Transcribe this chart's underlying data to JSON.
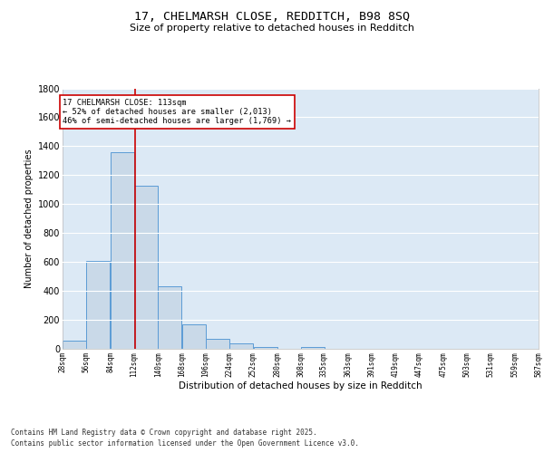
{
  "title": "17, CHELMARSH CLOSE, REDDITCH, B98 8SQ",
  "subtitle": "Size of property relative to detached houses in Redditch",
  "xlabel": "Distribution of detached houses by size in Redditch",
  "ylabel": "Number of detached properties",
  "footer_line1": "Contains HM Land Registry data © Crown copyright and database right 2025.",
  "footer_line2": "Contains public sector information licensed under the Open Government Licence v3.0.",
  "bin_edges": [
    28,
    56,
    84,
    112,
    140,
    168,
    196,
    224,
    252,
    280,
    308,
    335,
    363,
    391,
    419,
    447,
    475,
    503,
    531,
    559,
    587
  ],
  "bar_heights": [
    56,
    605,
    1360,
    1130,
    430,
    170,
    68,
    35,
    15,
    0,
    15,
    0,
    0,
    0,
    0,
    0,
    0,
    0,
    0,
    0
  ],
  "bar_color": "#c9d9e8",
  "bar_edge_color": "#5b9bd5",
  "plot_bg_color": "#dce9f5",
  "fig_bg_color": "#ffffff",
  "grid_color": "#ffffff",
  "vline_x": 113,
  "vline_color": "#cc0000",
  "ylim": [
    0,
    1800
  ],
  "annotation_text": "17 CHELMARSH CLOSE: 113sqm\n← 52% of detached houses are smaller (2,013)\n46% of semi-detached houses are larger (1,769) →",
  "annotation_box_color": "#cc0000",
  "title_fontsize": 9.5,
  "subtitle_fontsize": 8,
  "tick_labels": [
    "28sqm",
    "56sqm",
    "84sqm",
    "112sqm",
    "140sqm",
    "168sqm",
    "196sqm",
    "224sqm",
    "252sqm",
    "280sqm",
    "308sqm",
    "335sqm",
    "363sqm",
    "391sqm",
    "419sqm",
    "447sqm",
    "475sqm",
    "503sqm",
    "531sqm",
    "559sqm",
    "587sqm"
  ],
  "yticks": [
    0,
    200,
    400,
    600,
    800,
    1000,
    1200,
    1400,
    1600,
    1800
  ],
  "ytick_labels": [
    "0",
    "200",
    "400",
    "600",
    "800",
    "1000",
    "1200",
    "1400",
    "1600",
    "1800"
  ]
}
